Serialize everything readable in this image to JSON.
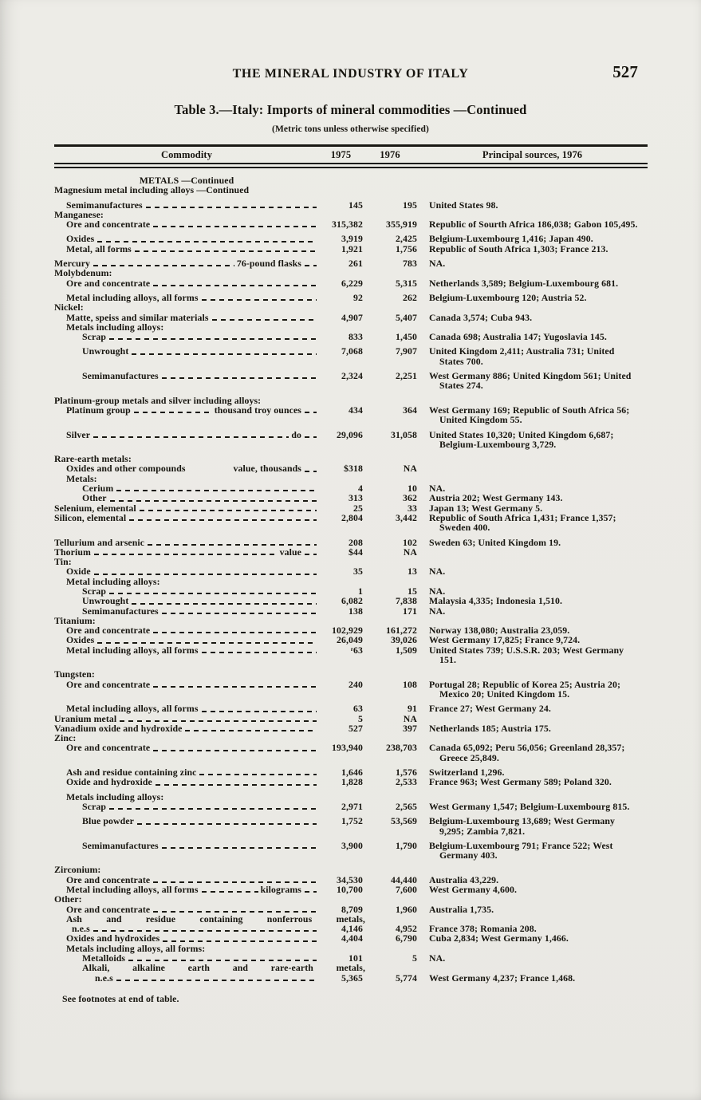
{
  "page": {
    "running_head": "THE MINERAL INDUSTRY OF ITALY",
    "page_number": "527",
    "table_title": "Table 3.—Italy: Imports of mineral commodities —Continued",
    "table_subtitle": "(Metric tons unless otherwise specified)",
    "footnote": "See footnotes at end of table."
  },
  "table": {
    "columns": {
      "commodity": "Commodity",
      "y1975": "1975",
      "y1976": "1976",
      "sources": "Principal sources, 1976"
    },
    "rows": [
      {
        "t": "sec",
        "lvl": "0",
        "label": "METALS —Continued"
      },
      {
        "t": "head",
        "lvl": "0",
        "label": "Magnesium metal including alloys —Continued"
      },
      {
        "t": "row",
        "lvl": "1",
        "label": "Semimanufactures",
        "v1": "145",
        "v2": "195",
        "src": "United States 98.",
        "gap": true
      },
      {
        "t": "head",
        "lvl": "0",
        "label": "Manganese:"
      },
      {
        "t": "row",
        "lvl": "1",
        "label": "Ore and concentrate",
        "v1": "315,382",
        "v2": "355,919",
        "src": "Republic of Sourth Africa 186,038; Gabon 105,495."
      },
      {
        "t": "row",
        "lvl": "1",
        "label": "Oxides",
        "v1": "3,919",
        "v2": "2,425",
        "src": "Belgium-Luxembourg 1,416; Japan 490.",
        "gap": true
      },
      {
        "t": "row",
        "lvl": "1",
        "label": "Metal, all forms",
        "v1": "1,921",
        "v2": "1,756",
        "src": "Republic of South Africa 1,303; France 213."
      },
      {
        "t": "row",
        "lvl": "0",
        "label": "Mercury",
        "unit": "76-pound flasks",
        "v1": "261",
        "v2": "783",
        "src": "NA.",
        "gap": true
      },
      {
        "t": "head",
        "lvl": "0",
        "label": "Molybdenum:"
      },
      {
        "t": "row",
        "lvl": "1",
        "label": "Ore and concentrate",
        "v1": "6,229",
        "v2": "5,315",
        "src": "Netherlands 3,589; Belgium-Luxembourg 681."
      },
      {
        "t": "row",
        "lvl": "1",
        "label": "Metal including alloys, all forms",
        "v1": "92",
        "v2": "262",
        "src": "Belgium-Luxembourg 120; Austria 52.",
        "gap": true
      },
      {
        "t": "head",
        "lvl": "0",
        "label": "Nickel:"
      },
      {
        "t": "row",
        "lvl": "1",
        "label": "Matte, speiss and similar materials",
        "v1": "4,907",
        "v2": "5,407",
        "src": "Canada 3,574; Cuba 943."
      },
      {
        "t": "head",
        "lvl": "1",
        "label": "Metals including alloys:"
      },
      {
        "t": "row",
        "lvl": "2",
        "label": "Scrap",
        "v1": "833",
        "v2": "1,450",
        "src": "Canada 698; Australia 147; Yugoslavia 145."
      },
      {
        "t": "row",
        "lvl": "2",
        "label": "Unwrought",
        "v1": "7,068",
        "v2": "7,907",
        "src": "United Kingdom 2,411; Australia 731; United States 700.",
        "gap": true
      },
      {
        "t": "row",
        "lvl": "2",
        "label": "Semimanufactures",
        "v1": "2,324",
        "v2": "2,251",
        "src": "West Germany 886; United Kingdom 561; United States 274.",
        "gap": true
      },
      {
        "t": "head",
        "lvl": "0",
        "label": "Platinum-group metals and silver including alloys:",
        "gap": true
      },
      {
        "t": "row",
        "lvl": "1",
        "label": "Platinum group",
        "unit": "thousand troy ounces",
        "v1": "434",
        "v2": "364",
        "src": "West Germany 169; Republic of South Africa 56; United Kingdom 55."
      },
      {
        "t": "row",
        "lvl": "1",
        "label": "Silver",
        "unit": "do",
        "v1": "29,096",
        "v2": "31,058",
        "src": "United States 10,320; United Kingdom 6,687; Belgium-Luxembourg 3,729.",
        "gap": true
      },
      {
        "t": "head",
        "lvl": "0",
        "label": "Rare-earth metals:",
        "gap": true
      },
      {
        "t": "row",
        "lvl": "1",
        "label": "Oxides and other compounds",
        "unit": "value, thousands",
        "unit_gap": "space",
        "v1": "$318",
        "v2": "NA",
        "src": ""
      },
      {
        "t": "head",
        "lvl": "1",
        "label": "Metals:"
      },
      {
        "t": "row",
        "lvl": "2",
        "label": "Cerium",
        "v1": "4",
        "v2": "10",
        "src": "NA."
      },
      {
        "t": "row",
        "lvl": "2",
        "label": "Other",
        "v1": "313",
        "v2": "362",
        "src": "Austria 202; West Germany 143."
      },
      {
        "t": "row",
        "lvl": "0",
        "label": "Selenium, elemental",
        "v1": "25",
        "v2": "33",
        "src": "Japan 13; West Germany 5."
      },
      {
        "t": "row",
        "lvl": "0",
        "label": "Silicon, elemental",
        "v1": "2,804",
        "v2": "3,442",
        "src": "Republic of South Africa 1,431; France 1,357; Sweden 400."
      },
      {
        "t": "row",
        "lvl": "0",
        "label": "Tellurium and arsenic",
        "v1": "208",
        "v2": "102",
        "src": "Sweden 63; United Kingdom 19.",
        "gap": true
      },
      {
        "t": "row",
        "lvl": "0",
        "label": "Thorium",
        "unit": "value",
        "v1": "$44",
        "v2": "NA",
        "src": ""
      },
      {
        "t": "head",
        "lvl": "0",
        "label": "Tin:"
      },
      {
        "t": "row",
        "lvl": "1",
        "label": "Oxide",
        "v1": "35",
        "v2": "13",
        "src": "NA."
      },
      {
        "t": "head",
        "lvl": "1",
        "label": "Metal including alloys:"
      },
      {
        "t": "row",
        "lvl": "2",
        "label": "Scrap",
        "v1": "1",
        "v2": "15",
        "src": "NA."
      },
      {
        "t": "row",
        "lvl": "2",
        "label": "Unwrought",
        "v1": "6,082",
        "v2": "7,838",
        "src": "Malaysia 4,335; Indonesia 1,510."
      },
      {
        "t": "row",
        "lvl": "2",
        "label": "Semimanufactures",
        "v1": "138",
        "v2": "171",
        "src": "NA."
      },
      {
        "t": "head",
        "lvl": "0",
        "label": "Titanium:"
      },
      {
        "t": "row",
        "lvl": "1",
        "label": "Ore and concentrate",
        "v1": "102,929",
        "v2": "161,272",
        "src": "Norway 138,080; Australia 23,059."
      },
      {
        "t": "row",
        "lvl": "1",
        "label": "Oxides",
        "v1": "26,049",
        "v2": "39,026",
        "src": "West Germany 17,825; France 9,724."
      },
      {
        "t": "row",
        "lvl": "1",
        "label": "Metal including alloys, all forms",
        "v1": "ʳ63",
        "v2": "1,509",
        "src": "United States 739; U.S.S.R. 203; West Germany 151."
      },
      {
        "t": "head",
        "lvl": "0",
        "label": "Tungsten:",
        "gap": true
      },
      {
        "t": "row",
        "lvl": "1",
        "label": "Ore and concentrate",
        "v1": "240",
        "v2": "108",
        "src": "Portugal 28; Republic of Korea 25; Austria 20; Mexico 20; United Kingdom 15."
      },
      {
        "t": "row",
        "lvl": "1",
        "label": "Metal including alloys, all forms",
        "v1": "63",
        "v2": "91",
        "src": "France 27; West Germany 24.",
        "gap": true
      },
      {
        "t": "row",
        "lvl": "0",
        "label": "Uranium metal",
        "v1": "5",
        "v2": "NA",
        "src": ""
      },
      {
        "t": "row",
        "lvl": "0",
        "label": "Vanadium oxide and hydroxide",
        "v1": "527",
        "v2": "397",
        "src": "Netherlands 185; Austria 175."
      },
      {
        "t": "head",
        "lvl": "0",
        "label": "Zinc:"
      },
      {
        "t": "row",
        "lvl": "1",
        "label": "Ore and concentrate",
        "v1": "193,940",
        "v2": "238,703",
        "src": "Canada 65,092; Peru 56,056; Greenland 28,357; Greece 25,849."
      },
      {
        "t": "row",
        "lvl": "1",
        "label": "Ash and residue containing zinc",
        "v1": "1,646",
        "v2": "1,576",
        "src": "Switzerland 1,296.",
        "gap": true
      },
      {
        "t": "row",
        "lvl": "1",
        "label": "Oxide and hydroxide",
        "v1": "1,828",
        "v2": "2,533",
        "src": "France 963; West Germany 589; Poland 320."
      },
      {
        "t": "head",
        "lvl": "1",
        "label": "Metals including alloys:",
        "gap": true
      },
      {
        "t": "row",
        "lvl": "2",
        "label": "Scrap",
        "v1": "2,971",
        "v2": "2,565",
        "src": "West Germany 1,547; Belgium-Luxembourg 815."
      },
      {
        "t": "row",
        "lvl": "2",
        "label": "Blue powder",
        "v1": "1,752",
        "v2": "53,569",
        "src": "Belgium-Luxembourg 13,689; West Germany 9,295; Zambia 7,821.",
        "gap": true
      },
      {
        "t": "row",
        "lvl": "2",
        "label": "Semimanufactures",
        "v1": "3,900",
        "v2": "1,790",
        "src": "Belgium-Luxembourg 791; France 522; West Germany 403.",
        "gap": true
      },
      {
        "t": "head",
        "lvl": "0",
        "label": "Zirconium:",
        "gap": true
      },
      {
        "t": "row",
        "lvl": "1",
        "label": "Ore and concentrate",
        "v1": "34,530",
        "v2": "44,440",
        "src": "Australia 43,229."
      },
      {
        "t": "row",
        "lvl": "1",
        "label": "Metal including alloys, all forms",
        "unit": "kilograms",
        "v1": "10,700",
        "v2": "7,600",
        "src": "West Germany 4,600."
      },
      {
        "t": "head",
        "lvl": "0",
        "label": "Other:"
      },
      {
        "t": "row",
        "lvl": "1",
        "label": "Ore and concentrate",
        "v1": "8,709",
        "v2": "1,960",
        "src": "Australia 1,735."
      },
      {
        "t": "wrap",
        "lvl": "1",
        "label": "Ash and residue containing nonferrous metals,"
      },
      {
        "t": "row",
        "lvl": "1b",
        "label": "n.e.s",
        "v1": "4,146",
        "v2": "4,952",
        "src": "France 378; Romania 208."
      },
      {
        "t": "row",
        "lvl": "1",
        "label": "Oxides and hydroxides",
        "v1": "4,404",
        "v2": "6,790",
        "src": "Cuba 2,834; West Germany 1,466."
      },
      {
        "t": "head",
        "lvl": "1",
        "label": "Metals including alloys, all forms:"
      },
      {
        "t": "row",
        "lvl": "2",
        "label": "Metalloids",
        "v1": "101",
        "v2": "5",
        "src": "NA."
      },
      {
        "t": "wrap",
        "lvl": "2",
        "label": "Alkali, alkaline earth and rare-earth metals,"
      },
      {
        "t": "row",
        "lvl": "3",
        "label": "n.e.s",
        "v1": "5,365",
        "v2": "5,774",
        "src": "West Germany 4,237; France 1,468."
      }
    ]
  }
}
